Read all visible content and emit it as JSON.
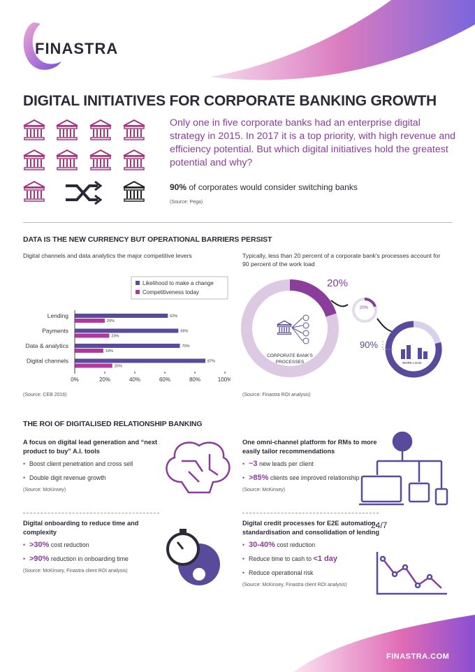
{
  "brand": "FINASTRA",
  "title": "DIGITAL INITIATIVES FOR CORPORATE BANKING GROWTH",
  "intro": "Only one in five corporate banks had an enterprise digital strategy in 2015. In 2017 it is a top priority, with high revenue and efficiency potential. But which digital initiatives hold the greatest potential and why?",
  "stat": {
    "lead": "90%",
    "text": "of corporates would consider switching banks",
    "source": "(Source: Pega)"
  },
  "section1": {
    "title": "DATA IS THE NEW CURRENCY BUT OPERATIONAL BARRIERS PERSIST",
    "left": {
      "subtitle": "Digital channels and data analytics the major competitive levers",
      "source": "(Source: CEB 2016)"
    },
    "right": {
      "subtitle": "Typically, less than 20 percent of a corporate bank's processes account for 90 percent of the work load",
      "big_share": "20%",
      "small_share": "20%",
      "workload_share": "90%",
      "processes_label": "CORPORATE BANK'S PROCESSES",
      "workload_label": "WORK LOAD",
      "source": "(Source: Finastra ROI analysis)"
    }
  },
  "chart_data": {
    "type": "hbar",
    "categories": [
      "Lending",
      "Payments",
      "Data & analytics",
      "Digital channels"
    ],
    "series": [
      {
        "name": "Likelihood to make a change",
        "color": "#5a4a9c",
        "values": [
          62,
          69,
          70,
          87
        ],
        "value_labels": [
          "62%",
          "69%",
          "70%",
          "87%"
        ]
      },
      {
        "name": "Competitiveness today",
        "color": "#b3379c",
        "values": [
          20,
          23,
          19,
          25
        ],
        "value_labels": [
          "20%",
          "23%",
          "19%",
          "25%"
        ]
      }
    ],
    "xlim": [
      0,
      100
    ],
    "xticks": [
      {
        "value": 0,
        "label": "0%"
      },
      {
        "value": 20,
        "label": "20%"
      },
      {
        "value": 40,
        "label": "40%"
      },
      {
        "value": 60,
        "label": "60%"
      },
      {
        "value": 80,
        "label": "80%"
      },
      {
        "value": 100,
        "label": "100%"
      }
    ]
  },
  "section2": {
    "title": "THE ROI OF DIGITALISED RELATIONSHIP BANKING",
    "blocks": [
      {
        "heading": "A focus on digital lead generation and “next product to buy” A.I. tools",
        "bullets": [
          {
            "text": "Boost client penetration and cross sell"
          },
          {
            "text": "Double digit revenue growth"
          }
        ],
        "source": "(Source: McKinsey)"
      },
      {
        "heading": "One omni-channel platform for RMs to more easily tailor recommendations",
        "bullets": [
          {
            "lead": "~3",
            "text": "new leads per client"
          },
          {
            "lead": ">85%",
            "text": "clients see improved relationship"
          }
        ],
        "source": "(Source: McKinsey)",
        "icon_text": "24/7"
      },
      {
        "heading": "Digital onboarding to reduce time and complexity",
        "bullets": [
          {
            "lead": ">30%",
            "text": "cost reduction"
          },
          {
            "lead": ">90%",
            "text": "reduction in onboarding time"
          }
        ],
        "source": "(Source: McKinsey, Finastra client ROI analysis)"
      },
      {
        "heading": "Digital credit processes for E2E automation, standardisation and consolidation of lending",
        "bullets": [
          {
            "lead": "30-40%",
            "text": "cost reduction"
          },
          {
            "text": "Reduce time to cash to",
            "tail": "<1 day"
          },
          {
            "text": "Reduce operational risk"
          }
        ],
        "source": "(Source: McKinsey, Finastra client ROI analysis)"
      }
    ]
  },
  "footer": "FINASTRA.COM"
}
